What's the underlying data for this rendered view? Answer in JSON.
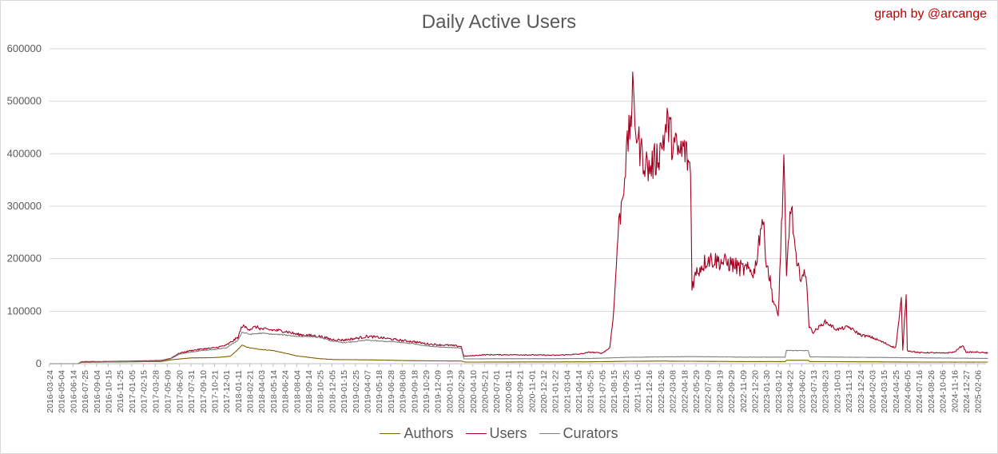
{
  "credit": "graph by @arcange",
  "chart_data": {
    "type": "line",
    "title": "Daily Active Users",
    "ylim": [
      0,
      600000
    ],
    "yticks": [
      0,
      100000,
      200000,
      300000,
      400000,
      500000,
      600000
    ],
    "grid": true,
    "legend_position": "bottom",
    "x_tick_labels": [
      "2016-03-24",
      "2016-05-04",
      "2016-06-14",
      "2016-07-25",
      "2016-09-04",
      "2016-10-15",
      "2016-11-25",
      "2017-01-05",
      "2017-02-15",
      "2017-03-28",
      "2017-05-09",
      "2017-06-20",
      "2017-07-31",
      "2017-09-10",
      "2017-10-21",
      "2017-12-01",
      "2018-01-11",
      "2018-02-21",
      "2018-04-03",
      "2018-05-14",
      "2018-06-24",
      "2018-08-04",
      "2018-09-14",
      "2018-10-25",
      "2018-12-05",
      "2019-01-15",
      "2019-02-25",
      "2019-04-07",
      "2019-05-18",
      "2019-06-28",
      "2019-08-08",
      "2019-09-18",
      "2019-10-29",
      "2019-12-09",
      "2020-01-19",
      "2020-02-29",
      "2020-04-10",
      "2020-05-21",
      "2020-07-01",
      "2020-08-11",
      "2020-09-21",
      "2020-11-01",
      "2020-12-12",
      "2021-01-22",
      "2021-03-04",
      "2021-04-14",
      "2021-05-25",
      "2021-07-05",
      "2021-08-15",
      "2021-09-25",
      "2021-11-05",
      "2021-12-16",
      "2022-01-26",
      "2022-03-08",
      "2022-04-18",
      "2022-05-29",
      "2022-07-09",
      "2022-08-19",
      "2022-09-29",
      "2022-11-09",
      "2022-12-20",
      "2023-01-30",
      "2023-03-12",
      "2023-04-22",
      "2023-06-02",
      "2023-07-13",
      "2023-08-23",
      "2023-10-03",
      "2023-11-13",
      "2023-12-24",
      "2024-02-03",
      "2024-03-15",
      "2024-04-25",
      "2024-06-05",
      "2024-07-16",
      "2024-08-26",
      "2024-10-06",
      "2024-11-16",
      "2024-12-27",
      "2025-02-06"
    ],
    "series": [
      {
        "name": "Authors",
        "color": "#7f6000",
        "points": [
          [
            "2016-03-24",
            0
          ],
          [
            "2016-07-01",
            0
          ],
          [
            "2016-07-15",
            2500
          ],
          [
            "2016-10-15",
            3000
          ],
          [
            "2017-01-05",
            3500
          ],
          [
            "2017-04-15",
            4000
          ],
          [
            "2017-06-01",
            8000
          ],
          [
            "2017-07-31",
            11000
          ],
          [
            "2017-10-21",
            11500
          ],
          [
            "2017-12-15",
            14000
          ],
          [
            "2018-01-05",
            24000
          ],
          [
            "2018-01-25",
            35000
          ],
          [
            "2018-02-21",
            30000
          ],
          [
            "2018-04-03",
            27000
          ],
          [
            "2018-05-14",
            25000
          ],
          [
            "2018-06-24",
            20000
          ],
          [
            "2018-08-04",
            15000
          ],
          [
            "2018-09-14",
            12000
          ],
          [
            "2018-10-25",
            9500
          ],
          [
            "2018-12-05",
            8000
          ],
          [
            "2019-02-25",
            7500
          ],
          [
            "2019-05-18",
            7000
          ],
          [
            "2019-08-08",
            6000
          ],
          [
            "2019-10-29",
            5500
          ],
          [
            "2020-02-29",
            5000
          ],
          [
            "2020-03-15",
            3000
          ],
          [
            "2020-07-01",
            3200
          ],
          [
            "2021-05-25",
            3500
          ],
          [
            "2021-09-25",
            4500
          ],
          [
            "2022-01-26",
            5000
          ],
          [
            "2022-05-29",
            4500
          ],
          [
            "2022-11-09",
            4000
          ],
          [
            "2023-04-05",
            4000
          ],
          [
            "2023-04-10",
            6500
          ],
          [
            "2023-06-25",
            6500
          ],
          [
            "2023-07-01",
            4000
          ],
          [
            "2024-01-20",
            3500
          ],
          [
            "2024-08-26",
            3000
          ],
          [
            "2025-03-15",
            3000
          ]
        ]
      },
      {
        "name": "Users",
        "color": "#a50021",
        "points": [
          [
            "2016-03-24",
            0
          ],
          [
            "2016-07-01",
            0
          ],
          [
            "2016-07-15",
            4000
          ],
          [
            "2016-10-15",
            4200
          ],
          [
            "2017-01-05",
            5000
          ],
          [
            "2017-04-15",
            6000
          ],
          [
            "2017-05-20",
            10000
          ],
          [
            "2017-06-20",
            20000
          ],
          [
            "2017-07-31",
            25000
          ],
          [
            "2017-09-10",
            28000
          ],
          [
            "2017-10-21",
            30000
          ],
          [
            "2017-12-01",
            35000
          ],
          [
            "2018-01-11",
            50000
          ],
          [
            "2018-01-25",
            72000
          ],
          [
            "2018-02-21",
            66000
          ],
          [
            "2018-03-15",
            70000
          ],
          [
            "2018-04-03",
            66000
          ],
          [
            "2018-05-14",
            64000
          ],
          [
            "2018-06-24",
            62000
          ],
          [
            "2018-08-04",
            56000
          ],
          [
            "2018-09-14",
            54000
          ],
          [
            "2018-10-25",
            52000
          ],
          [
            "2018-12-05",
            46000
          ],
          [
            "2019-01-15",
            45000
          ],
          [
            "2019-02-25",
            48000
          ],
          [
            "2019-04-07",
            52000
          ],
          [
            "2019-05-18",
            50000
          ],
          [
            "2019-06-28",
            47000
          ],
          [
            "2019-08-08",
            44000
          ],
          [
            "2019-09-18",
            42000
          ],
          [
            "2019-10-29",
            38000
          ],
          [
            "2019-12-09",
            36000
          ],
          [
            "2020-01-19",
            35000
          ],
          [
            "2020-02-29",
            33000
          ],
          [
            "2020-03-10",
            14000
          ],
          [
            "2020-05-21",
            17000
          ],
          [
            "2020-09-21",
            17000
          ],
          [
            "2021-01-22",
            16000
          ],
          [
            "2021-04-14",
            18000
          ],
          [
            "2021-05-25",
            22000
          ],
          [
            "2021-07-05",
            20000
          ],
          [
            "2021-08-01",
            30000
          ],
          [
            "2021-08-15",
            100000
          ],
          [
            "2021-08-30",
            250000
          ],
          [
            "2021-09-10",
            300000
          ],
          [
            "2021-09-25",
            380000
          ],
          [
            "2021-10-10",
            450000
          ],
          [
            "2021-10-20",
            510000
          ],
          [
            "2021-11-05",
            430000
          ],
          [
            "2021-11-20",
            400000
          ],
          [
            "2021-12-16",
            370000
          ],
          [
            "2022-01-10",
            390000
          ],
          [
            "2022-01-26",
            410000
          ],
          [
            "2022-02-20",
            460000
          ],
          [
            "2022-03-08",
            420000
          ],
          [
            "2022-04-01",
            400000
          ],
          [
            "2022-04-18",
            410000
          ],
          [
            "2022-05-10",
            370000
          ],
          [
            "2022-05-15",
            150000
          ],
          [
            "2022-06-01",
            175000
          ],
          [
            "2022-07-09",
            200000
          ],
          [
            "2022-08-19",
            195000
          ],
          [
            "2022-09-29",
            190000
          ],
          [
            "2022-11-09",
            180000
          ],
          [
            "2022-12-20",
            175000
          ],
          [
            "2023-01-15",
            280000
          ],
          [
            "2023-01-30",
            200000
          ],
          [
            "2023-02-23",
            120000
          ],
          [
            "2023-03-12",
            90000
          ],
          [
            "2023-04-01",
            380000
          ],
          [
            "2023-04-10",
            160000
          ],
          [
            "2023-04-25",
            310000
          ],
          [
            "2023-05-16",
            180000
          ],
          [
            "2023-06-02",
            170000
          ],
          [
            "2023-06-20",
            160000
          ],
          [
            "2023-06-28",
            70000
          ],
          [
            "2023-07-13",
            60000
          ],
          [
            "2023-08-23",
            80000
          ],
          [
            "2023-10-03",
            65000
          ],
          [
            "2023-11-13",
            70000
          ],
          [
            "2023-12-24",
            55000
          ],
          [
            "2024-02-03",
            50000
          ],
          [
            "2024-03-15",
            40000
          ],
          [
            "2024-04-25",
            30000
          ],
          [
            "2024-05-15",
            120000
          ],
          [
            "2024-05-20",
            25000
          ],
          [
            "2024-06-01",
            140000
          ],
          [
            "2024-06-05",
            25000
          ],
          [
            "2024-07-16",
            21000
          ],
          [
            "2024-08-26",
            21000
          ],
          [
            "2024-10-06",
            20000
          ],
          [
            "2024-11-16",
            22000
          ],
          [
            "2024-12-15",
            35000
          ],
          [
            "2024-12-27",
            22000
          ],
          [
            "2025-02-06",
            22000
          ],
          [
            "2025-03-15",
            20000
          ]
        ]
      },
      {
        "name": "Curators",
        "color": "#7f7f7f",
        "points": [
          [
            "2016-03-24",
            0
          ],
          [
            "2016-07-01",
            0
          ],
          [
            "2016-07-15",
            3000
          ],
          [
            "2016-10-15",
            3200
          ],
          [
            "2017-01-05",
            4000
          ],
          [
            "2017-04-15",
            5000
          ],
          [
            "2017-05-20",
            9000
          ],
          [
            "2017-06-20",
            18000
          ],
          [
            "2017-07-31",
            22000
          ],
          [
            "2017-09-10",
            25000
          ],
          [
            "2017-10-21",
            27000
          ],
          [
            "2017-12-01",
            30000
          ],
          [
            "2018-01-11",
            45000
          ],
          [
            "2018-01-25",
            60000
          ],
          [
            "2018-02-21",
            56000
          ],
          [
            "2018-04-03",
            58000
          ],
          [
            "2018-05-14",
            56000
          ],
          [
            "2018-06-24",
            55000
          ],
          [
            "2018-08-04",
            52000
          ],
          [
            "2018-09-14",
            52000
          ],
          [
            "2018-10-25",
            50000
          ],
          [
            "2018-12-05",
            43000
          ],
          [
            "2019-01-15",
            40000
          ],
          [
            "2019-02-25",
            42000
          ],
          [
            "2019-04-07",
            45000
          ],
          [
            "2019-05-18",
            43000
          ],
          [
            "2019-06-28",
            42000
          ],
          [
            "2019-08-08",
            40000
          ],
          [
            "2019-09-18",
            38000
          ],
          [
            "2019-10-29",
            34000
          ],
          [
            "2019-12-09",
            32000
          ],
          [
            "2020-01-19",
            31000
          ],
          [
            "2020-02-29",
            30000
          ],
          [
            "2020-03-10",
            9000
          ],
          [
            "2020-07-01",
            9500
          ],
          [
            "2021-01-22",
            9500
          ],
          [
            "2021-05-25",
            10000
          ],
          [
            "2021-09-25",
            12000
          ],
          [
            "2022-01-26",
            13000
          ],
          [
            "2022-05-29",
            13500
          ],
          [
            "2022-11-09",
            12500
          ],
          [
            "2023-04-05",
            12500
          ],
          [
            "2023-04-10",
            25000
          ],
          [
            "2023-06-25",
            25000
          ],
          [
            "2023-07-01",
            13000
          ],
          [
            "2024-01-20",
            12000
          ],
          [
            "2024-08-26",
            11000
          ],
          [
            "2025-03-15",
            10000
          ]
        ]
      }
    ]
  }
}
